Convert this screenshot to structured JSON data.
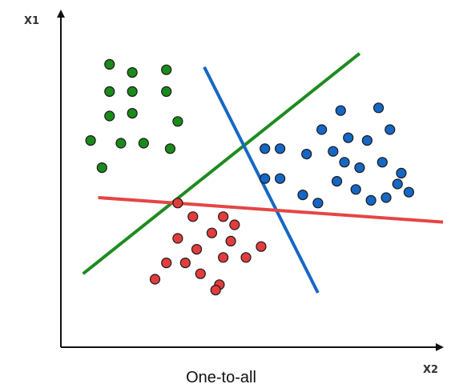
{
  "diagram": {
    "caption": "One-to-all",
    "y_axis_label": "X1",
    "x_axis_label": "X2",
    "colors": {
      "axis": "#111111",
      "green": "#1a8a1a",
      "blue": "#1666c4",
      "red": "#e23c3c",
      "green_line": "#1e8c1e",
      "blue_line": "#1667c6",
      "red_line": "#e54545",
      "outline": "#1a1a1a"
    }
  },
  "chart_data": {
    "type": "scatter",
    "title": "One-to-all",
    "xlabel": "X2",
    "ylabel": "X1",
    "xlim": [
      0,
      100
    ],
    "ylim": [
      0,
      100
    ],
    "series": [
      {
        "class": "green",
        "points": [
          [
            12,
            94
          ],
          [
            18,
            91
          ],
          [
            27,
            92
          ],
          [
            12,
            84
          ],
          [
            18,
            84
          ],
          [
            27,
            84
          ],
          [
            12,
            75
          ],
          [
            18,
            76
          ],
          [
            30,
            73
          ],
          [
            7,
            66
          ],
          [
            15,
            65
          ],
          [
            21,
            65
          ],
          [
            28,
            63
          ],
          [
            10,
            56
          ]
        ]
      },
      {
        "class": "blue",
        "points": [
          [
            73,
            77
          ],
          [
            68,
            70
          ],
          [
            83,
            78
          ],
          [
            86,
            70
          ],
          [
            53,
            63
          ],
          [
            57,
            63
          ],
          [
            64,
            61
          ],
          [
            75,
            67
          ],
          [
            80,
            66
          ],
          [
            71,
            62
          ],
          [
            74,
            58
          ],
          [
            78,
            56
          ],
          [
            84,
            58
          ],
          [
            72,
            51
          ],
          [
            77,
            48
          ],
          [
            53,
            52
          ],
          [
            57,
            52
          ],
          [
            81,
            44
          ],
          [
            85,
            45
          ],
          [
            88,
            50
          ],
          [
            91,
            47
          ],
          [
            63,
            46
          ],
          [
            67,
            43
          ],
          [
            89,
            54
          ]
        ]
      },
      {
        "class": "red",
        "points": [
          [
            30,
            43
          ],
          [
            34,
            38
          ],
          [
            42,
            38
          ],
          [
            45,
            35
          ],
          [
            39,
            32
          ],
          [
            44,
            29
          ],
          [
            30,
            30
          ],
          [
            35,
            26
          ],
          [
            42,
            23
          ],
          [
            48,
            23
          ],
          [
            52,
            27
          ],
          [
            27,
            21
          ],
          [
            32,
            21
          ],
          [
            36,
            17
          ],
          [
            41,
            13
          ],
          [
            24,
            15
          ],
          [
            40,
            11
          ]
        ]
      }
    ],
    "lines": [
      {
        "class": "green",
        "p1": [
          5,
          17
        ],
        "p2": [
          78,
          98
        ]
      },
      {
        "class": "blue",
        "p1": [
          37,
          93
        ],
        "p2": [
          67,
          10
        ]
      },
      {
        "class": "red",
        "p1": [
          9,
          45
        ],
        "p2": [
          100,
          36
        ]
      }
    ]
  }
}
